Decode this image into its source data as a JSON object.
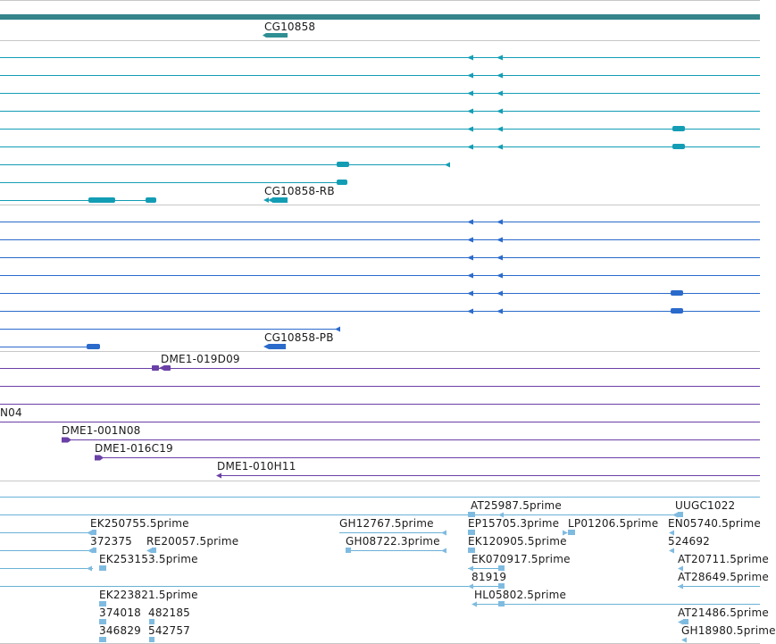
{
  "colors": {
    "band": "#35858a",
    "gene": "#2f8f93",
    "teal": "#139db5",
    "blue": "#2a6acb",
    "purple": "#6a40a6",
    "est_line": "#6ab1d6",
    "est": "#7fbbe0",
    "sep": "#c7c7c7"
  },
  "labels": [
    {
      "text": "CG10858"
    },
    {
      "text": "CG10858-RB"
    },
    {
      "text": "CG10858-PB"
    },
    {
      "text": "DME1-019D09"
    },
    {
      "text": "N04"
    },
    {
      "text": "DME1-001N08"
    },
    {
      "text": "DME1-016C19"
    },
    {
      "text": "DME1-010H11"
    },
    {
      "text": "AT25987.5prime"
    },
    {
      "text": "UUGC1022"
    },
    {
      "text": "EK250755.5prime"
    },
    {
      "text": "GH12767.5prime"
    },
    {
      "text": "EP15705.3prime"
    },
    {
      "text": "LP01206.5prime"
    },
    {
      "text": "EN05740.5prime"
    },
    {
      "text": "372375"
    },
    {
      "text": "RE20057.5prime"
    },
    {
      "text": "GH08722.3prime"
    },
    {
      "text": "EK120905.5prime"
    },
    {
      "text": "524692"
    },
    {
      "text": "EK253153.5prime"
    },
    {
      "text": "EK070917.5prime"
    },
    {
      "text": "AT20711.5prime"
    },
    {
      "text": "81919"
    },
    {
      "text": "AT28649.5prime"
    },
    {
      "text": "EK223821.5prime"
    },
    {
      "text": "HL05802.5prime"
    },
    {
      "text": "374018"
    },
    {
      "text": "482185"
    },
    {
      "text": "AT21486.5prime"
    },
    {
      "text": "346829"
    },
    {
      "text": "542757"
    },
    {
      "text": "GH18980.5prime"
    }
  ]
}
